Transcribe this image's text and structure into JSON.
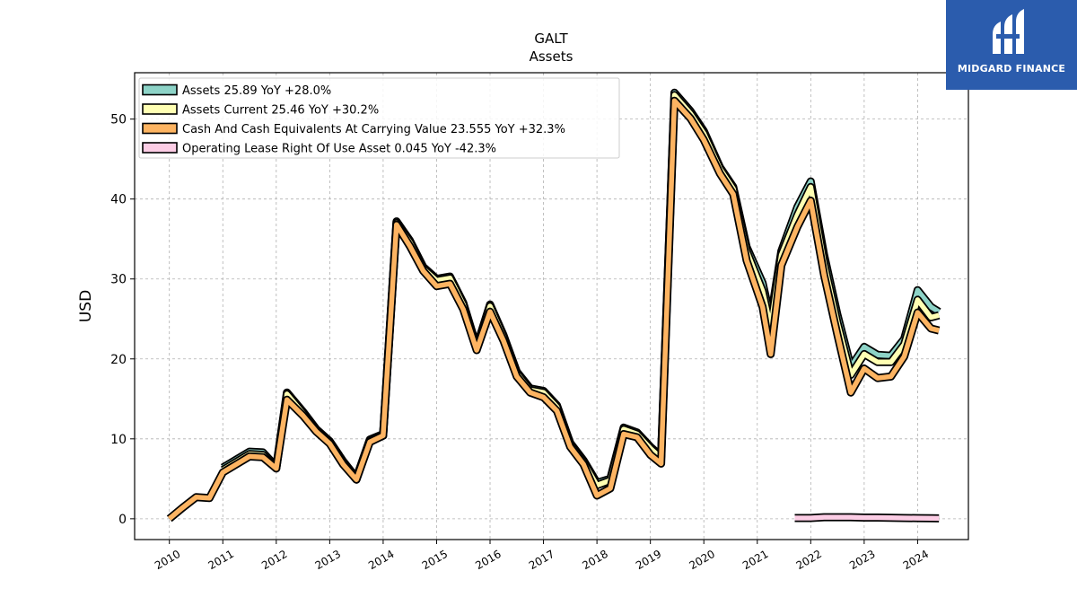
{
  "header": {
    "ticker": "GALT",
    "subtitle": "Assets"
  },
  "brand": {
    "name": "MIDGARD FINANCE",
    "color": "#2b5cad"
  },
  "chart_data": {
    "type": "line",
    "title": "GALT",
    "subtitle": "Assets",
    "xlabel": "",
    "ylabel": "USD",
    "xlim": [
      2009.35,
      2024.95
    ],
    "ylim": [
      -2.6,
      55.8
    ],
    "xticks": [
      "2010",
      "2011",
      "2012",
      "2013",
      "2014",
      "2015",
      "2016",
      "2017",
      "2018",
      "2019",
      "2020",
      "2021",
      "2022",
      "2023",
      "2024"
    ],
    "yticks": [
      0,
      10,
      20,
      30,
      40,
      50
    ],
    "grid": true,
    "legend_position": "top-left",
    "series": [
      {
        "name": "Assets",
        "legend": "Assets  25.89 YoY +28.0%",
        "color": "#8dd3c7",
        "points": [
          [
            2011.0,
            6.4
          ],
          [
            2011.25,
            7.4
          ],
          [
            2011.5,
            8.4
          ],
          [
            2011.75,
            8.3
          ],
          [
            2012.0,
            6.5
          ],
          [
            2012.2,
            15.8
          ],
          [
            2012.5,
            13.4
          ],
          [
            2012.75,
            11.2
          ],
          [
            2013.0,
            9.7
          ],
          [
            2013.25,
            7.2
          ],
          [
            2013.5,
            5.1
          ],
          [
            2013.75,
            9.9
          ],
          [
            2014.0,
            10.6
          ],
          [
            2014.25,
            37.2
          ],
          [
            2014.5,
            34.8
          ],
          [
            2014.75,
            31.5
          ],
          [
            2015.0,
            30.0
          ],
          [
            2015.25,
            30.3
          ],
          [
            2015.5,
            27.0
          ],
          [
            2015.75,
            21.5
          ],
          [
            2016.0,
            26.8
          ],
          [
            2016.25,
            23.0
          ],
          [
            2016.5,
            18.4
          ],
          [
            2016.75,
            16.3
          ],
          [
            2017.0,
            16.0
          ],
          [
            2017.25,
            14.2
          ],
          [
            2017.5,
            9.5
          ],
          [
            2017.75,
            7.3
          ],
          [
            2018.0,
            4.5
          ],
          [
            2018.25,
            5.0
          ],
          [
            2018.5,
            11.4
          ],
          [
            2018.75,
            10.8
          ],
          [
            2019.0,
            9.0
          ],
          [
            2019.2,
            7.8
          ],
          [
            2019.45,
            53.3
          ],
          [
            2019.75,
            51.0
          ],
          [
            2020.0,
            48.5
          ],
          [
            2020.3,
            44.0
          ],
          [
            2020.55,
            41.5
          ],
          [
            2020.8,
            34.0
          ],
          [
            2021.1,
            29.5
          ],
          [
            2021.25,
            25.0
          ],
          [
            2021.45,
            33.5
          ],
          [
            2021.75,
            39.0
          ],
          [
            2022.0,
            42.2
          ],
          [
            2022.25,
            33.0
          ],
          [
            2022.5,
            25.5
          ],
          [
            2022.75,
            19.0
          ],
          [
            2023.0,
            21.5
          ],
          [
            2023.25,
            20.5
          ],
          [
            2023.5,
            20.4
          ],
          [
            2023.75,
            22.5
          ],
          [
            2024.0,
            28.6
          ],
          [
            2024.25,
            26.5
          ],
          [
            2024.4,
            25.89
          ]
        ]
      },
      {
        "name": "Assets Current",
        "legend": "Assets Current  25.46 YoY +30.2%",
        "color": "#ffffb3",
        "points": [
          [
            2011.0,
            6.1
          ],
          [
            2011.25,
            7.1
          ],
          [
            2011.5,
            8.1
          ],
          [
            2011.75,
            8.0
          ],
          [
            2012.0,
            6.3
          ],
          [
            2012.2,
            15.6
          ],
          [
            2012.5,
            13.2
          ],
          [
            2012.75,
            11.0
          ],
          [
            2013.0,
            9.5
          ],
          [
            2013.25,
            7.0
          ],
          [
            2013.5,
            4.9
          ],
          [
            2013.75,
            9.7
          ],
          [
            2014.0,
            10.4
          ],
          [
            2014.25,
            37.0
          ],
          [
            2014.5,
            34.6
          ],
          [
            2014.75,
            31.3
          ],
          [
            2015.0,
            29.8
          ],
          [
            2015.25,
            30.1
          ],
          [
            2015.5,
            26.8
          ],
          [
            2015.75,
            21.3
          ],
          [
            2016.0,
            26.6
          ],
          [
            2016.25,
            22.8
          ],
          [
            2016.5,
            18.2
          ],
          [
            2016.75,
            16.1
          ],
          [
            2017.0,
            15.8
          ],
          [
            2017.25,
            14.0
          ],
          [
            2017.5,
            9.3
          ],
          [
            2017.75,
            7.1
          ],
          [
            2018.0,
            4.2
          ],
          [
            2018.25,
            4.8
          ],
          [
            2018.5,
            11.2
          ],
          [
            2018.75,
            10.6
          ],
          [
            2019.0,
            8.8
          ],
          [
            2019.2,
            7.6
          ],
          [
            2019.45,
            53.0
          ],
          [
            2019.75,
            50.7
          ],
          [
            2020.0,
            48.2
          ],
          [
            2020.3,
            43.8
          ],
          [
            2020.55,
            41.3
          ],
          [
            2020.8,
            33.5
          ],
          [
            2021.1,
            28.5
          ],
          [
            2021.25,
            24.0
          ],
          [
            2021.45,
            33.0
          ],
          [
            2021.75,
            38.0
          ],
          [
            2022.0,
            41.5
          ],
          [
            2022.25,
            32.0
          ],
          [
            2022.5,
            24.5
          ],
          [
            2022.75,
            18.0
          ],
          [
            2023.0,
            20.6
          ],
          [
            2023.25,
            19.6
          ],
          [
            2023.5,
            19.6
          ],
          [
            2023.75,
            21.8
          ],
          [
            2024.0,
            27.4
          ],
          [
            2024.25,
            25.2
          ],
          [
            2024.4,
            25.46
          ]
        ]
      },
      {
        "name": "Cash And Cash Equivalents At Carrying Value",
        "legend": "Cash And Cash Equivalents At Carrying Value  23.555 YoY +32.3%",
        "color": "#fdb462",
        "points": [
          [
            2010.0,
            0.0
          ],
          [
            2010.25,
            1.4
          ],
          [
            2010.5,
            2.7
          ],
          [
            2010.75,
            2.6
          ],
          [
            2011.0,
            5.8
          ],
          [
            2011.25,
            6.8
          ],
          [
            2011.5,
            7.8
          ],
          [
            2011.75,
            7.7
          ],
          [
            2012.0,
            6.3
          ],
          [
            2012.2,
            14.9
          ],
          [
            2012.5,
            12.9
          ],
          [
            2012.75,
            10.9
          ],
          [
            2013.0,
            9.4
          ],
          [
            2013.25,
            6.8
          ],
          [
            2013.5,
            4.9
          ],
          [
            2013.75,
            9.6
          ],
          [
            2014.0,
            10.4
          ],
          [
            2014.25,
            36.8
          ],
          [
            2014.5,
            34.1
          ],
          [
            2014.75,
            31.0
          ],
          [
            2015.0,
            29.1
          ],
          [
            2015.25,
            29.4
          ],
          [
            2015.5,
            26.2
          ],
          [
            2015.75,
            21.1
          ],
          [
            2016.0,
            25.9
          ],
          [
            2016.25,
            22.3
          ],
          [
            2016.5,
            17.8
          ],
          [
            2016.75,
            15.8
          ],
          [
            2017.0,
            15.2
          ],
          [
            2017.25,
            13.5
          ],
          [
            2017.5,
            9.0
          ],
          [
            2017.75,
            6.8
          ],
          [
            2018.0,
            2.9
          ],
          [
            2018.25,
            3.8
          ],
          [
            2018.5,
            10.6
          ],
          [
            2018.75,
            10.2
          ],
          [
            2019.0,
            8.0
          ],
          [
            2019.2,
            6.9
          ],
          [
            2019.45,
            52.3
          ],
          [
            2019.75,
            50.1
          ],
          [
            2020.0,
            47.4
          ],
          [
            2020.3,
            43.2
          ],
          [
            2020.55,
            40.6
          ],
          [
            2020.8,
            32.3
          ],
          [
            2021.1,
            26.5
          ],
          [
            2021.25,
            20.6
          ],
          [
            2021.45,
            31.7
          ],
          [
            2021.75,
            36.5
          ],
          [
            2022.0,
            39.8
          ],
          [
            2022.25,
            30.5
          ],
          [
            2022.5,
            23.0
          ],
          [
            2022.75,
            15.8
          ],
          [
            2023.0,
            18.8
          ],
          [
            2023.25,
            17.6
          ],
          [
            2023.5,
            17.8
          ],
          [
            2023.75,
            20.3
          ],
          [
            2024.0,
            25.8
          ],
          [
            2024.25,
            23.8
          ],
          [
            2024.4,
            23.555
          ]
        ]
      },
      {
        "name": "Operating Lease Right Of Use Asset",
        "legend": "Operating Lease Right Of Use Asset  0.045 YoY -42.3%",
        "color": "#fccde5",
        "points": [
          [
            2021.7,
            0.1
          ],
          [
            2022.0,
            0.1
          ],
          [
            2022.25,
            0.2
          ],
          [
            2022.5,
            0.2
          ],
          [
            2022.75,
            0.2
          ],
          [
            2023.0,
            0.15
          ],
          [
            2023.25,
            0.15
          ],
          [
            2023.5,
            0.12
          ],
          [
            2023.75,
            0.1
          ],
          [
            2024.0,
            0.08
          ],
          [
            2024.25,
            0.06
          ],
          [
            2024.4,
            0.045
          ]
        ]
      }
    ]
  }
}
